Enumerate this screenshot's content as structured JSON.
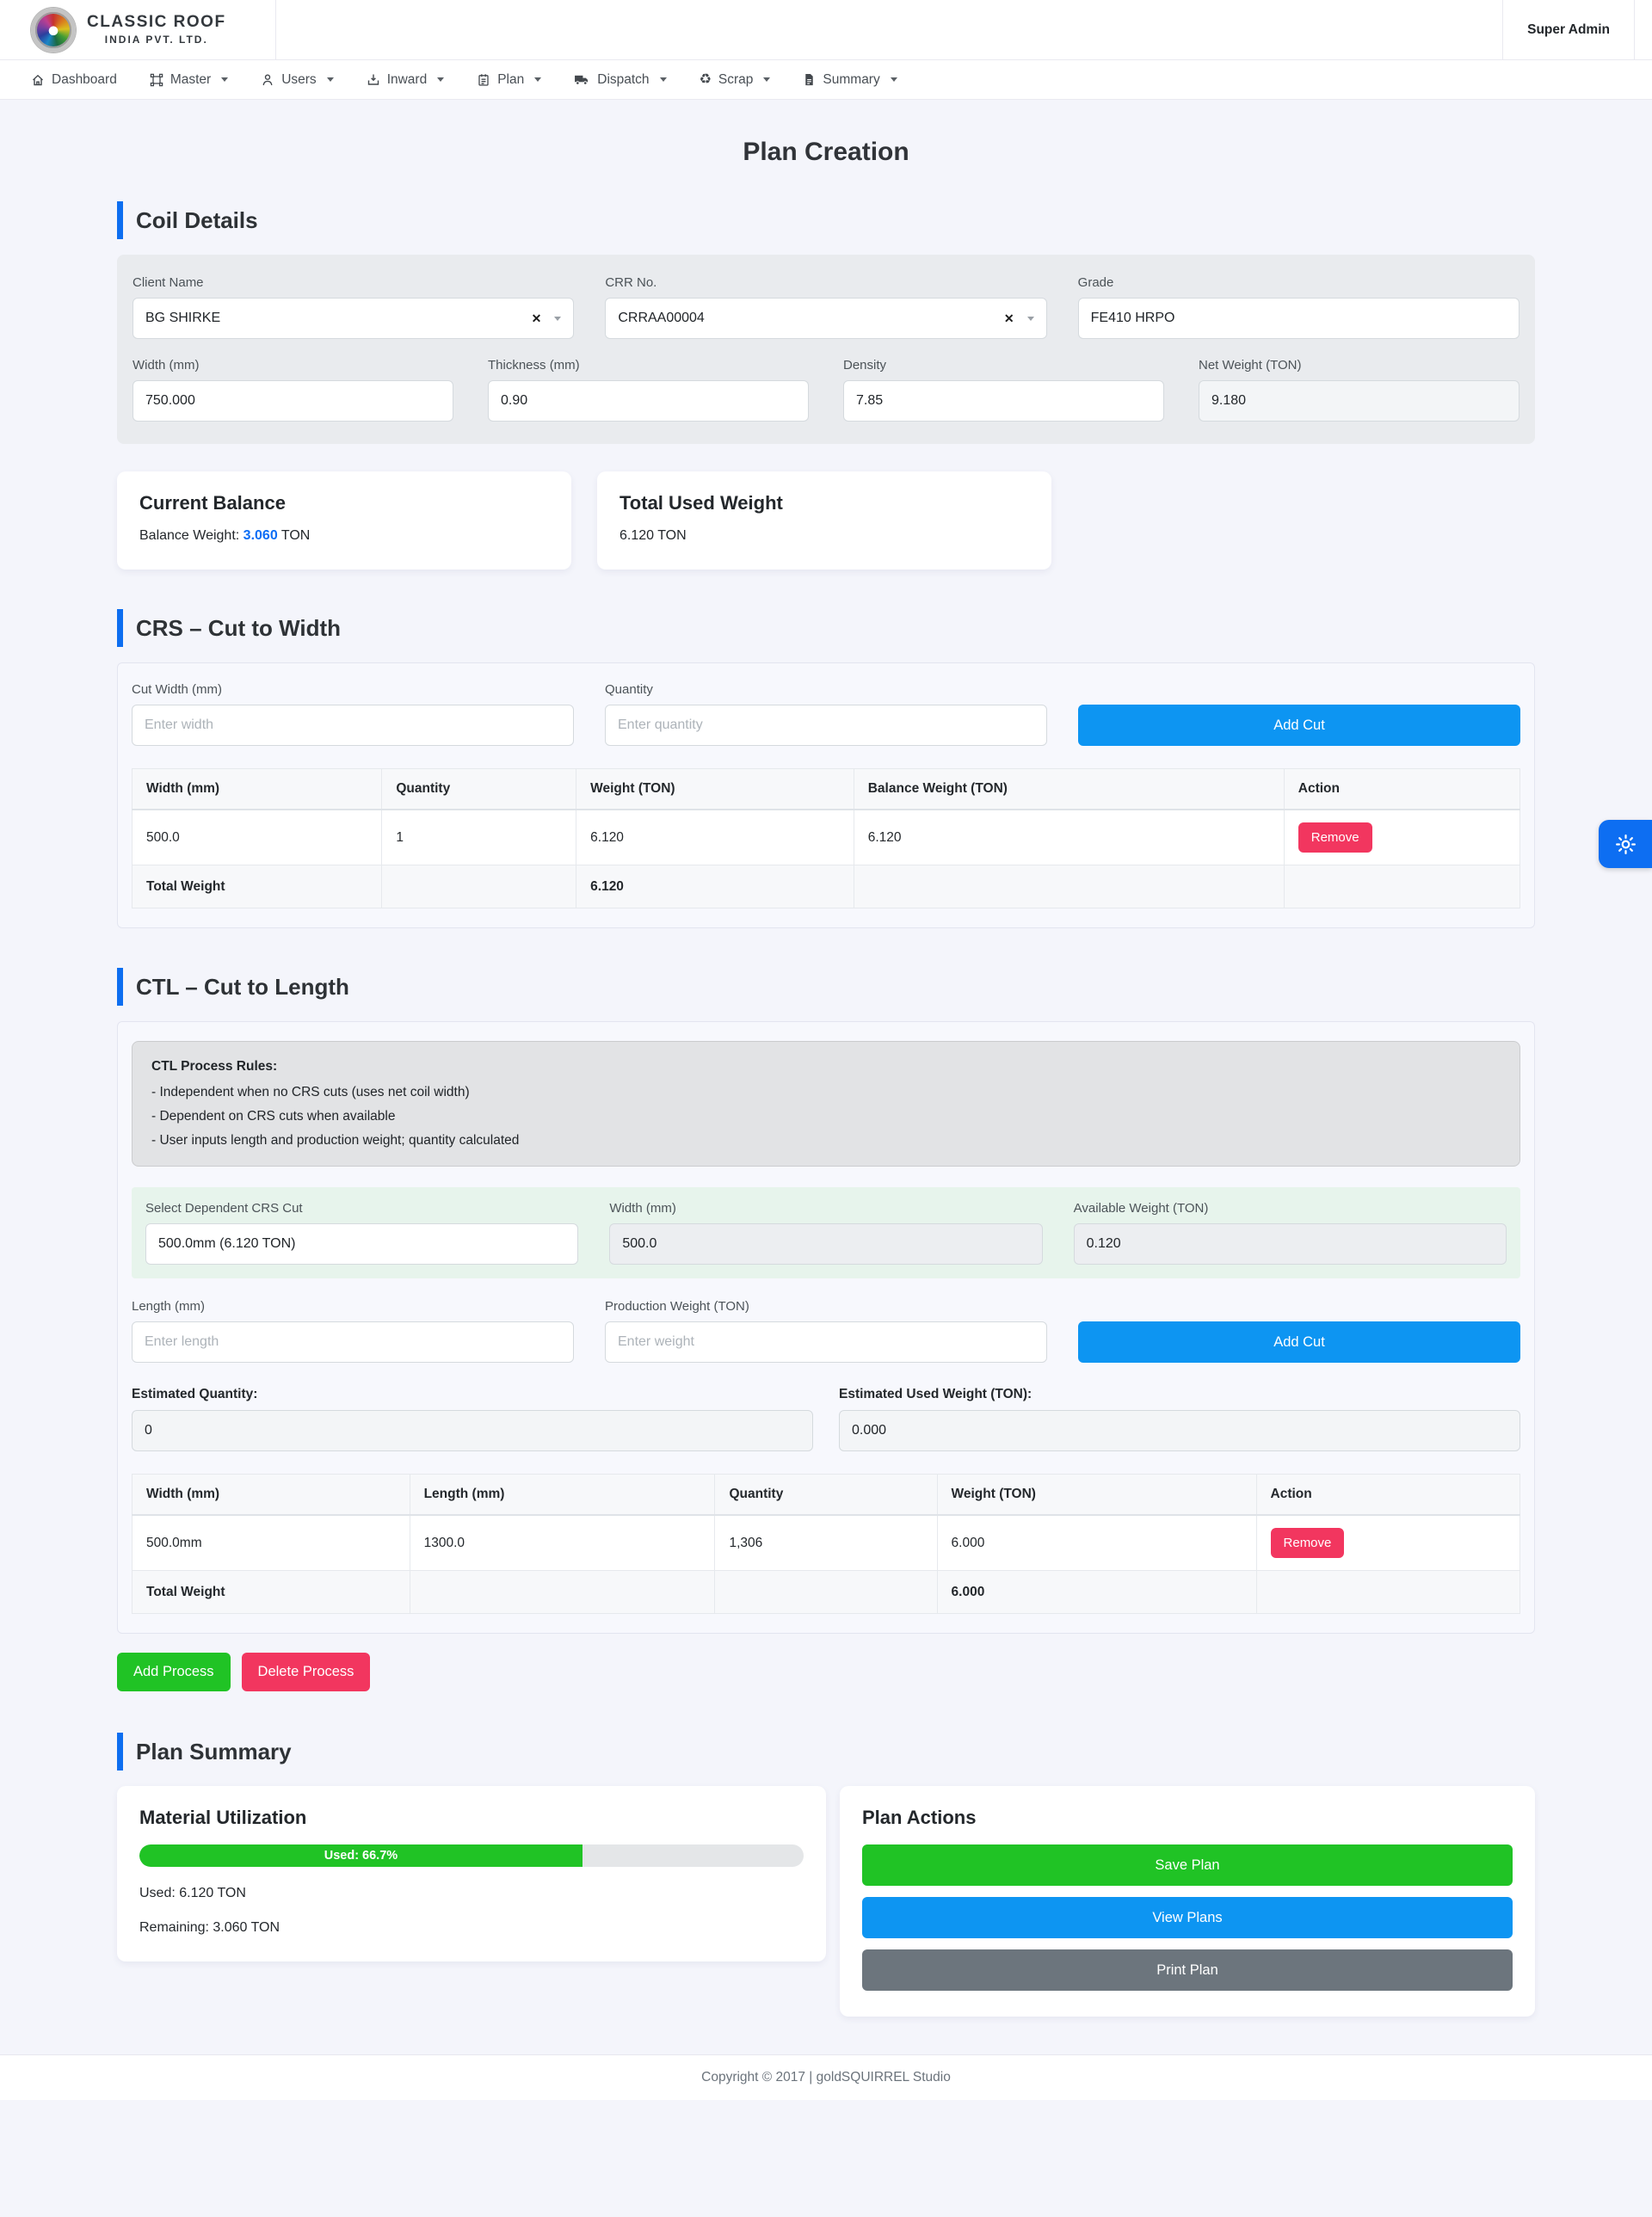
{
  "brand": {
    "name": "CLASSIC ROOF",
    "subtitle": "INDIA PVT. LTD."
  },
  "topbar": {
    "user_label": "Super Admin"
  },
  "nav": {
    "items": [
      {
        "label": "Dashboard",
        "icon": "home-icon"
      },
      {
        "label": "Master",
        "icon": "master-icon"
      },
      {
        "label": "Users",
        "icon": "users-icon"
      },
      {
        "label": "Inward",
        "icon": "inward-icon"
      },
      {
        "label": "Plan",
        "icon": "plan-icon"
      },
      {
        "label": "Dispatch",
        "icon": "dispatch-truck-icon"
      },
      {
        "label": "Scrap",
        "icon": "recycle-icon"
      },
      {
        "label": "Summary",
        "icon": "document-icon"
      }
    ]
  },
  "glyphs": {
    "clear": "✕",
    "recycle": "♻"
  },
  "page": {
    "title": "Plan Creation"
  },
  "coil": {
    "heading": "Coil Details",
    "client_name": {
      "label": "Client Name",
      "value": "BG SHIRKE"
    },
    "crr_no": {
      "label": "CRR No.",
      "value": "CRRAA00004"
    },
    "grade": {
      "label": "Grade",
      "value": "FE410 HRPO"
    },
    "width": {
      "label": "Width (mm)",
      "value": "750.000"
    },
    "thickness": {
      "label": "Thickness (mm)",
      "value": "0.90"
    },
    "density": {
      "label": "Density",
      "value": "7.85"
    },
    "net_weight": {
      "label": "Net Weight (TON)",
      "value": "9.180"
    }
  },
  "balance_card": {
    "title": "Current Balance",
    "label": "Balance Weight: ",
    "value": "3.060",
    "unit": " TON"
  },
  "used_card": {
    "title": "Total Used Weight",
    "value": "6.120 TON"
  },
  "crs": {
    "heading": "CRS – Cut to Width",
    "cut_width": {
      "label": "Cut Width (mm)",
      "placeholder": "Enter width"
    },
    "quantity": {
      "label": "Quantity",
      "placeholder": "Enter quantity"
    },
    "add_button": "Add Cut",
    "table": {
      "headers": [
        "Width (mm)",
        "Quantity",
        "Weight (TON)",
        "Balance Weight (TON)",
        "Action"
      ],
      "row": {
        "width": "500.0",
        "quantity": "1",
        "weight": "6.120",
        "balance": "6.120",
        "action": "Remove"
      },
      "total_label": "Total Weight",
      "total_value": "6.120"
    }
  },
  "ctl": {
    "heading": "CTL – Cut to Length",
    "rules": {
      "title": "CTL Process Rules:",
      "lines": [
        "- Independent when no CRS cuts (uses net coil width)",
        "- Dependent on CRS cuts when available",
        "- User inputs length and production weight; quantity calculated"
      ]
    },
    "dependent": {
      "label": "Select Dependent CRS Cut",
      "value": "500.0mm (6.120 TON)"
    },
    "width": {
      "label": "Width (mm)",
      "value": "500.0"
    },
    "available": {
      "label": "Available Weight (TON)",
      "value": "0.120"
    },
    "length": {
      "label": "Length (mm)",
      "placeholder": "Enter length"
    },
    "production": {
      "label": "Production Weight (TON)",
      "placeholder": "Enter weight"
    },
    "add_button": "Add Cut",
    "est_quantity": {
      "label": "Estimated Quantity:",
      "value": "0"
    },
    "est_used": {
      "label": "Estimated Used Weight (TON):",
      "value": "0.000"
    },
    "table": {
      "headers": [
        "Width (mm)",
        "Length (mm)",
        "Quantity",
        "Weight (TON)",
        "Action"
      ],
      "row": {
        "width": "500.0mm",
        "length": "1300.0",
        "quantity": "1,306",
        "weight": "6.000",
        "action": "Remove"
      },
      "total_label": "Total Weight",
      "total_value": "6.000"
    }
  },
  "process_actions": {
    "add": "Add Process",
    "delete": "Delete Process"
  },
  "summary": {
    "heading": "Plan Summary",
    "utilization": {
      "title": "Material Utilization",
      "progress_label": "Used: 66.7%",
      "progress_pct": 66.7,
      "used_line": "Used: 6.120 TON",
      "remaining_line": "Remaining: 3.060 TON"
    },
    "actions": {
      "title": "Plan Actions",
      "save": "Save Plan",
      "view": "View Plans",
      "print": "Print Plan"
    }
  },
  "footer": {
    "copyright": "Copyright © 2017 | goldSQUIRREL Studio"
  },
  "colors": {
    "primary_blue": "#0d95f2",
    "accent_bar_blue": "#0d6ef0",
    "green": "#20c325",
    "red": "#f2365f",
    "gray": "#6c757d",
    "page_bg": "#f4f5fb"
  }
}
